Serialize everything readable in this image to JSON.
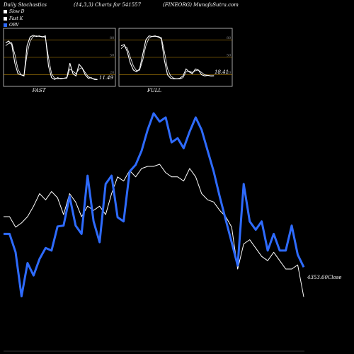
{
  "header": {
    "left": "Daily Stochastics",
    "middle": "(14,3,3) Charts for 541557",
    "right": "(FINEORG) MunafaSutra.com"
  },
  "legend": [
    {
      "label": "Slow D",
      "color": "#ffffff"
    },
    {
      "label": "Fast K",
      "color": "#ffffff"
    },
    {
      "label": "OBV",
      "color": "#2e6bff"
    }
  ],
  "panels": [
    {
      "label": "FAST",
      "last_value": "11.49"
    },
    {
      "label": "FULL",
      "last_value": "18.41"
    }
  ],
  "close_label": "4353.60Close",
  "chart_data": [
    {
      "type": "line",
      "title": "FAST",
      "ylim": [
        0,
        100
      ],
      "y_ticks": [
        20,
        50,
        80
      ],
      "series": [
        {
          "values": [
            75,
            78,
            72,
            40,
            22,
            20,
            18,
            70,
            85,
            88,
            86,
            87,
            85,
            87,
            35,
            15,
            12,
            15,
            13,
            14,
            15,
            40,
            22,
            18,
            38,
            32,
            20,
            14,
            15,
            12,
            11.49
          ]
        },
        {
          "values": [
            70,
            74,
            75,
            55,
            30,
            20,
            19,
            55,
            78,
            86,
            87,
            86,
            86,
            84,
            50,
            22,
            14,
            13,
            14,
            14,
            14,
            30,
            26,
            22,
            30,
            32,
            24,
            17,
            14,
            13,
            12
          ]
        }
      ]
    },
    {
      "type": "line",
      "title": "FULL",
      "ylim": [
        0,
        100
      ],
      "y_ticks": [
        20,
        50,
        80
      ],
      "series": [
        {
          "values": [
            70,
            72,
            60,
            40,
            28,
            25,
            30,
            55,
            80,
            87,
            86,
            87,
            85,
            82,
            45,
            20,
            14,
            13,
            13,
            14,
            18,
            30,
            25,
            22,
            30,
            28,
            20,
            18,
            19,
            18,
            18.41
          ]
        },
        {
          "values": [
            65,
            70,
            66,
            50,
            35,
            27,
            28,
            45,
            70,
            83,
            86,
            86,
            86,
            84,
            60,
            30,
            18,
            14,
            13,
            13,
            15,
            25,
            26,
            24,
            27,
            28,
            24,
            20,
            19,
            18,
            18
          ]
        }
      ]
    },
    {
      "type": "line",
      "series": [
        {
          "name": "OBV",
          "color": "#2e6bff",
          "values": [
            15,
            15,
            -7,
            -60,
            -20,
            -35,
            -15,
            -2,
            -5,
            24,
            25,
            60,
            25,
            15,
            85,
            30,
            5,
            75,
            85,
            35,
            30,
            90,
            98,
            115,
            140,
            160,
            150,
            155,
            125,
            130,
            118,
            138,
            155,
            140,
            115,
            90,
            60,
            32,
            5,
            -23,
            75,
            30,
            20,
            30,
            -5,
            15,
            -5,
            -5,
            25,
            -10,
            -25
          ]
        },
        {
          "name": "Close",
          "color": "#ffffff",
          "values": [
            4545,
            4545,
            4520,
            4530,
            4545,
            4570,
            4600,
            4585,
            4605,
            4590,
            4550,
            4600,
            4580,
            4545,
            4570,
            4560,
            4570,
            4550,
            4600,
            4640,
            4630,
            4655,
            4640,
            4660,
            4665,
            4665,
            4670,
            4650,
            4640,
            4640,
            4630,
            4660,
            4640,
            4600,
            4585,
            4580,
            4560,
            4545,
            4520,
            4420,
            4480,
            4490,
            4470,
            4450,
            4440,
            4460,
            4440,
            4420,
            4420,
            4430,
            4353.6
          ]
        }
      ]
    }
  ]
}
